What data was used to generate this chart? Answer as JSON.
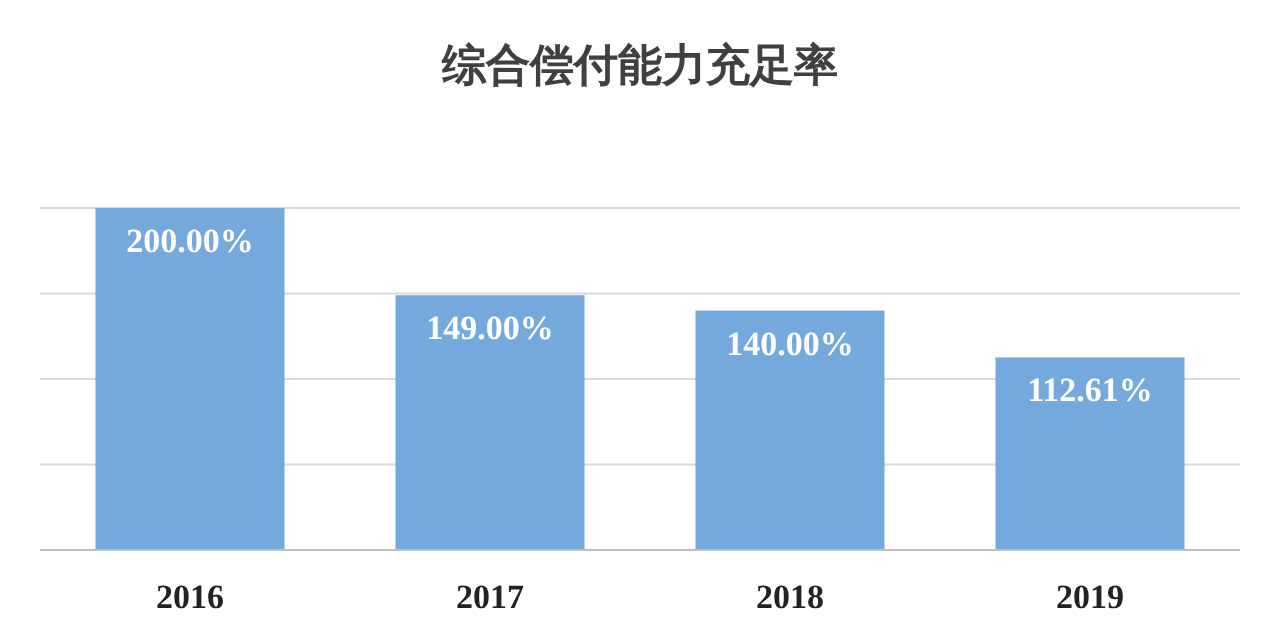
{
  "chart_data": {
    "type": "bar",
    "title": "综合偿付能力充足率",
    "categories": [
      "2016",
      "2017",
      "2018",
      "2019"
    ],
    "values": [
      200.0,
      149.0,
      140.0,
      112.61
    ],
    "value_labels": [
      "200.00%",
      "149.00%",
      "140.00%",
      "112.61%"
    ],
    "color": "#75a8dc",
    "ylim": [
      0,
      200
    ],
    "yticks": [
      {
        "value": 0,
        "label": null
      },
      {
        "value": 50,
        "label": null
      },
      {
        "value": 100,
        "label": null
      },
      {
        "value": 150,
        "label": null
      },
      {
        "value": 200,
        "label": null
      }
    ],
    "tick_labels": "x",
    "grid": "y"
  }
}
